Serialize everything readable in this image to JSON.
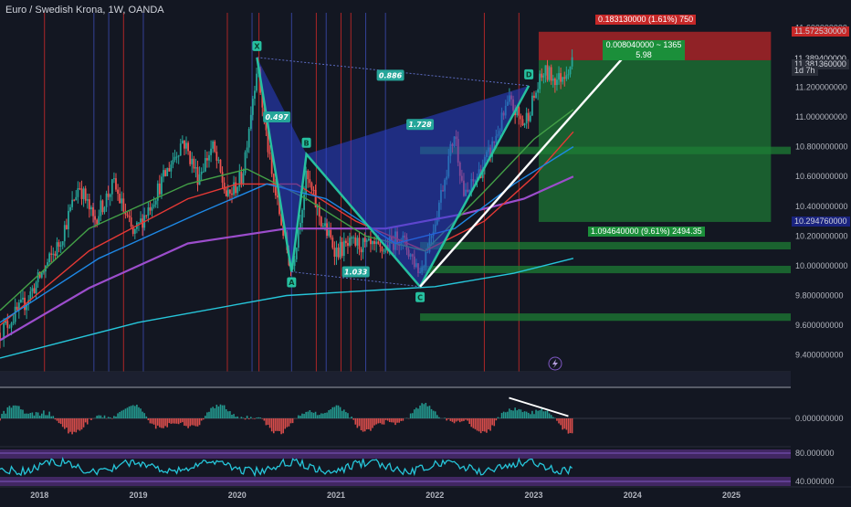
{
  "chart_title": "Euro / Swedish Krona, 1W, OANDA",
  "colors": {
    "background": "#131722",
    "up_candle": "#26a69a",
    "down_candle": "#ef5350",
    "pattern_fill": "#2a3fd0",
    "pattern_line": "#26c0a0",
    "trendline": "#ffffff",
    "target_zone": "#1e7d34",
    "stop_zone": "#c62828"
  },
  "chart_data": {
    "type": "candlestick",
    "symbol": "EURSEK",
    "timeframe": "1W",
    "y_axis": {
      "range": [
        9.3,
        11.7
      ],
      "ticks": [
        "11.600000000",
        "11.400000000",
        "11.200000000",
        "11.000000000",
        "10.800000000",
        "10.600000000",
        "10.400000000",
        "10.200000000",
        "10.000000000",
        "9.800000000",
        "9.600000000",
        "9.400000000"
      ],
      "tick_values": [
        11.6,
        11.4,
        11.2,
        11.0,
        10.8,
        10.6,
        10.4,
        10.2,
        10.0,
        9.8,
        9.6,
        9.4
      ]
    },
    "x_axis": {
      "range": [
        2017.6,
        2025.6
      ],
      "ticks": [
        "2018",
        "2019",
        "2020",
        "2021",
        "2022",
        "2023",
        "2024",
        "2025"
      ],
      "tick_values": [
        2018,
        2019,
        2020,
        2021,
        2022,
        2023,
        2024,
        2025
      ]
    },
    "price_anchors": [
      {
        "t": 2017.6,
        "p": 9.55
      },
      {
        "t": 2017.85,
        "p": 9.75
      },
      {
        "t": 2018.2,
        "p": 10.15
      },
      {
        "t": 2018.4,
        "p": 10.55
      },
      {
        "t": 2018.55,
        "p": 10.3
      },
      {
        "t": 2018.75,
        "p": 10.55
      },
      {
        "t": 2018.95,
        "p": 10.2
      },
      {
        "t": 2019.15,
        "p": 10.45
      },
      {
        "t": 2019.45,
        "p": 10.85
      },
      {
        "t": 2019.6,
        "p": 10.6
      },
      {
        "t": 2019.75,
        "p": 10.8
      },
      {
        "t": 2019.9,
        "p": 10.45
      },
      {
        "t": 2020.05,
        "p": 10.6
      },
      {
        "t": 2020.2,
        "p": 11.35
      },
      {
        "t": 2020.35,
        "p": 10.6
      },
      {
        "t": 2020.55,
        "p": 9.96
      },
      {
        "t": 2020.7,
        "p": 10.6
      },
      {
        "t": 2020.85,
        "p": 10.3
      },
      {
        "t": 2021.0,
        "p": 10.1
      },
      {
        "t": 2021.2,
        "p": 10.15
      },
      {
        "t": 2021.45,
        "p": 10.1
      },
      {
        "t": 2021.65,
        "p": 10.2
      },
      {
        "t": 2021.85,
        "p": 9.96
      },
      {
        "t": 2022.0,
        "p": 10.3
      },
      {
        "t": 2022.2,
        "p": 10.9
      },
      {
        "t": 2022.3,
        "p": 10.45
      },
      {
        "t": 2022.55,
        "p": 10.75
      },
      {
        "t": 2022.75,
        "p": 11.1
      },
      {
        "t": 2022.9,
        "p": 10.95
      },
      {
        "t": 2023.1,
        "p": 11.3
      },
      {
        "t": 2023.25,
        "p": 11.25
      },
      {
        "t": 2023.4,
        "p": 11.38
      }
    ],
    "moving_averages": [
      {
        "color": "#26c6da",
        "points": [
          [
            2017.6,
            9.38
          ],
          [
            2019.0,
            9.62
          ],
          [
            2020.5,
            9.8
          ],
          [
            2022.0,
            9.86
          ],
          [
            2022.8,
            9.95
          ],
          [
            2023.4,
            10.05
          ]
        ]
      },
      {
        "color": "#9c4dcc",
        "points": [
          [
            2017.6,
            9.5
          ],
          [
            2018.5,
            9.85
          ],
          [
            2019.5,
            10.15
          ],
          [
            2020.5,
            10.25
          ],
          [
            2021.5,
            10.25
          ],
          [
            2022.3,
            10.35
          ],
          [
            2022.9,
            10.45
          ],
          [
            2023.4,
            10.6
          ]
        ]
      },
      {
        "color": "#e53935",
        "points": [
          [
            2017.6,
            9.6
          ],
          [
            2018.5,
            10.1
          ],
          [
            2019.5,
            10.45
          ],
          [
            2020.0,
            10.55
          ],
          [
            2020.6,
            10.55
          ],
          [
            2021.2,
            10.3
          ],
          [
            2021.9,
            10.1
          ],
          [
            2022.5,
            10.3
          ],
          [
            2023.0,
            10.6
          ],
          [
            2023.4,
            10.9
          ]
        ]
      },
      {
        "color": "#43a047",
        "points": [
          [
            2017.6,
            9.7
          ],
          [
            2018.5,
            10.25
          ],
          [
            2019.5,
            10.55
          ],
          [
            2020.1,
            10.65
          ],
          [
            2020.7,
            10.45
          ],
          [
            2021.3,
            10.2
          ],
          [
            2021.9,
            10.1
          ],
          [
            2022.5,
            10.5
          ],
          [
            2023.0,
            10.85
          ],
          [
            2023.4,
            11.05
          ]
        ]
      },
      {
        "color": "#1e88e5",
        "points": [
          [
            2017.6,
            9.62
          ],
          [
            2018.6,
            10.05
          ],
          [
            2019.6,
            10.35
          ],
          [
            2020.3,
            10.55
          ],
          [
            2020.9,
            10.45
          ],
          [
            2021.6,
            10.15
          ],
          [
            2022.2,
            10.25
          ],
          [
            2022.8,
            10.55
          ],
          [
            2023.4,
            10.8
          ]
        ]
      }
    ],
    "harmonic_pattern": {
      "points": [
        {
          "label": "X",
          "t": 2020.2,
          "p": 11.4
        },
        {
          "label": "A",
          "t": 2020.55,
          "p": 9.96
        },
        {
          "label": "B",
          "t": 2020.7,
          "p": 10.75
        },
        {
          "label": "C",
          "t": 2021.85,
          "p": 9.86
        },
        {
          "label": "D",
          "t": 2022.95,
          "p": 11.21
        }
      ],
      "ratios": [
        {
          "value": "0.497",
          "t": 2020.4,
          "p": 11.0
        },
        {
          "value": "0.886",
          "t": 2021.55,
          "p": 11.28
        },
        {
          "value": "1.728",
          "t": 2021.85,
          "p": 10.95
        },
        {
          "value": "1.033",
          "t": 2021.2,
          "p": 9.96
        }
      ]
    },
    "trendline": {
      "from": {
        "t": 2021.85,
        "p": 9.86
      },
      "to": {
        "t": 2024.0,
        "p": 11.47
      }
    },
    "position": {
      "entry": 11.381,
      "stop": 11.5725,
      "target": 10.2948,
      "t_start": 2023.05,
      "t_end": 2025.4,
      "stop_label": "0.183130000 (1.61%) 750",
      "entry_label_1": "0.008040000 ~ 1365",
      "entry_label_2": "5.98",
      "target_label": "1.094640000 (9.61%) 2494.35"
    },
    "right_price_tags": [
      {
        "value": "11.572530000",
        "p": 11.5725,
        "bg": "#c62828"
      },
      {
        "value": "11.389400000",
        "p": 11.3894,
        "bg": "#131722"
      },
      {
        "value": "11.381360000",
        "p": 11.3514,
        "bg": "#2a2e39"
      },
      {
        "value": "1d 7h",
        "p": 11.3094,
        "bg": "#2a2e39"
      },
      {
        "value": "10.294760000",
        "p": 10.2948,
        "bg": "#1a237e"
      }
    ],
    "horizontal_zones": [
      {
        "p_top": 10.8,
        "p_bottom": 10.75,
        "color": "#1e7d34"
      },
      {
        "p_top": 10.16,
        "p_bottom": 10.11,
        "color": "#1e7d34"
      },
      {
        "p_top": 10.0,
        "p_bottom": 9.95,
        "color": "#1e7d34"
      },
      {
        "p_top": 9.68,
        "p_bottom": 9.63,
        "color": "#1e7d34"
      }
    ],
    "vertical_lines": [
      {
        "t": 2018.05,
        "color": "#c62828"
      },
      {
        "t": 2018.55,
        "color": "#3949ab"
      },
      {
        "t": 2018.7,
        "color": "#3949ab"
      },
      {
        "t": 2018.85,
        "color": "#c62828"
      },
      {
        "t": 2019.05,
        "color": "#3949ab"
      },
      {
        "t": 2019.9,
        "color": "#c62828"
      },
      {
        "t": 2020.15,
        "color": "#3949ab"
      },
      {
        "t": 2020.22,
        "color": "#c62828"
      },
      {
        "t": 2020.55,
        "color": "#3949ab"
      },
      {
        "t": 2020.8,
        "color": "#c62828"
      },
      {
        "t": 2020.9,
        "color": "#3949ab"
      },
      {
        "t": 2021.05,
        "color": "#c62828"
      },
      {
        "t": 2021.15,
        "color": "#c62828"
      },
      {
        "t": 2021.3,
        "color": "#3949ab"
      },
      {
        "t": 2021.5,
        "color": "#3949ab"
      },
      {
        "t": 2022.5,
        "color": "#c62828"
      },
      {
        "t": 2022.85,
        "color": "#c62828"
      }
    ],
    "macd_panel": {
      "y_ticks": [
        "0.000000000"
      ],
      "histogram_seed": 7,
      "divergence_line": {
        "from": {
          "t": 2022.75,
          "v": 0.9
        },
        "to": {
          "t": 2023.35,
          "v": 0.1
        }
      }
    },
    "rsi_panel": {
      "y_ticks": [
        "80.000000",
        "40.000000"
      ]
    }
  }
}
